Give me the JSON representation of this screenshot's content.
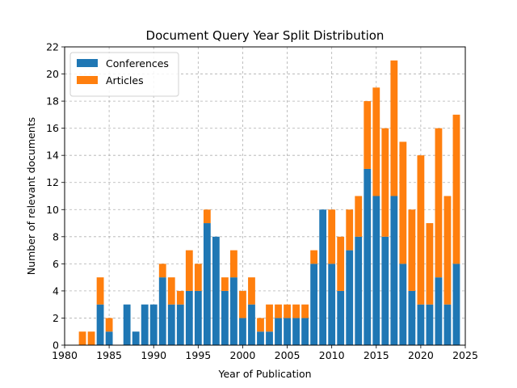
{
  "chart_data": {
    "type": "bar",
    "stacked": true,
    "title": "Document Query Year Split Distribution",
    "xlabel": "Year of Publication",
    "ylabel": "Number of relevant documents",
    "xlim": [
      1980,
      2025
    ],
    "ylim": [
      0,
      22
    ],
    "xticks": [
      1980,
      1985,
      1990,
      1995,
      2000,
      2005,
      2010,
      2015,
      2020,
      2025
    ],
    "yticks": [
      0,
      2,
      4,
      6,
      8,
      10,
      12,
      14,
      16,
      18,
      20,
      22
    ],
    "grid": true,
    "legend_position": "upper-left",
    "x": [
      1982,
      1983,
      1984,
      1985,
      1987,
      1988,
      1989,
      1990,
      1991,
      1992,
      1993,
      1994,
      1995,
      1996,
      1997,
      1998,
      1999,
      2000,
      2001,
      2002,
      2003,
      2004,
      2005,
      2006,
      2007,
      2008,
      2009,
      2010,
      2011,
      2012,
      2013,
      2014,
      2015,
      2016,
      2017,
      2018,
      2019,
      2020,
      2021,
      2022,
      2023,
      2024
    ],
    "series": [
      {
        "name": "Conferences",
        "color": "#1f77b4",
        "values": [
          0,
          0,
          3,
          1,
          3,
          1,
          3,
          3,
          5,
          3,
          3,
          4,
          4,
          9,
          8,
          4,
          5,
          2,
          3,
          1,
          1,
          2,
          2,
          2,
          2,
          6,
          10,
          6,
          4,
          7,
          8,
          13,
          11,
          8,
          11,
          6,
          4,
          3,
          3,
          5,
          3,
          6
        ]
      },
      {
        "name": "Articles",
        "color": "#ff7f0e",
        "values": [
          1,
          1,
          2,
          1,
          0,
          0,
          0,
          0,
          1,
          2,
          1,
          3,
          2,
          1,
          0,
          1,
          2,
          2,
          2,
          1,
          2,
          1,
          1,
          1,
          1,
          1,
          0,
          4,
          4,
          3,
          3,
          5,
          8,
          8,
          10,
          9,
          6,
          11,
          6,
          11,
          8,
          11
        ]
      }
    ]
  }
}
